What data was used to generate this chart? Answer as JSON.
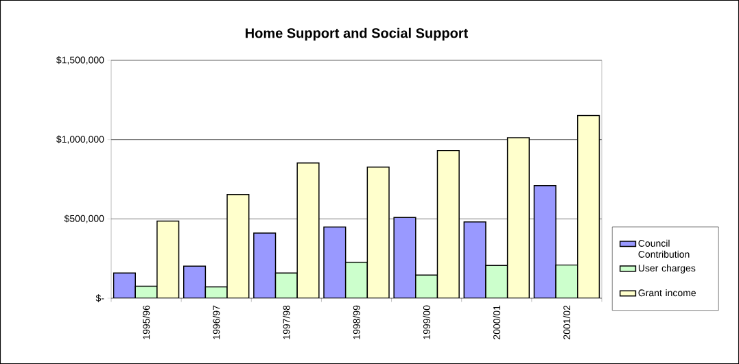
{
  "chart_data": {
    "type": "bar",
    "title": "Home Support and Social Support",
    "categories": [
      "1995/96",
      "1996/97",
      "1997/98",
      "1998/99",
      "1999/00",
      "2000/01",
      "2001/02"
    ],
    "series": [
      {
        "name": "Council Contribution",
        "color": "#9999ff",
        "values": [
          159000,
          202000,
          411000,
          449000,
          509000,
          481000,
          710000
        ]
      },
      {
        "name": "User charges",
        "color": "#ccffcc",
        "values": [
          76000,
          71000,
          159000,
          227000,
          146000,
          206000,
          209000
        ]
      },
      {
        "name": "Grant income",
        "color": "#ffffcc",
        "values": [
          486000,
          654000,
          853000,
          827000,
          931000,
          1012000,
          1152000
        ]
      }
    ],
    "ylim": [
      0,
      1500000
    ],
    "yticks": [
      {
        "value": 0,
        "label": "$-"
      },
      {
        "value": 500000,
        "label": "$500,000"
      },
      {
        "value": 1000000,
        "label": "$1,000,000"
      },
      {
        "value": 1500000,
        "label": "$1,500,000"
      }
    ],
    "grid": "y",
    "legend": "right"
  }
}
